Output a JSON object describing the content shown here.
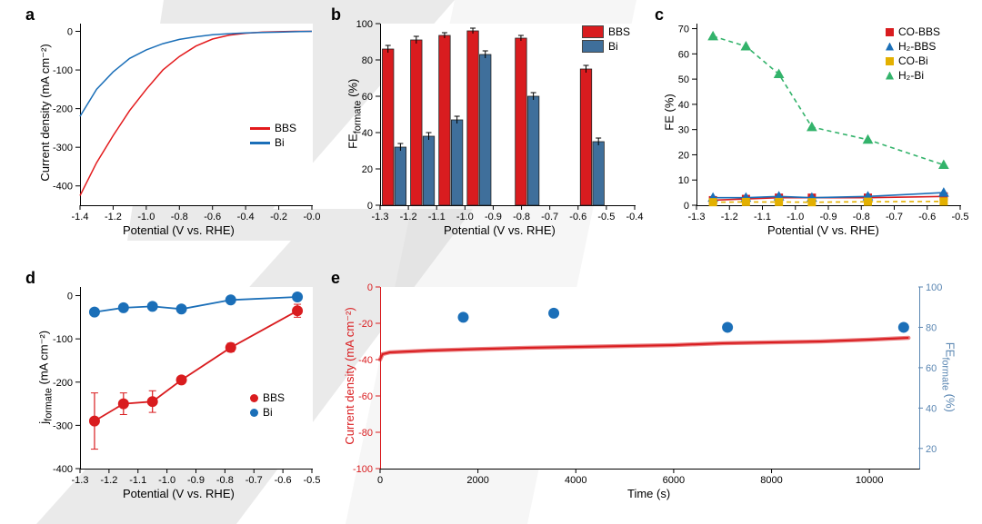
{
  "panels": {
    "a": {
      "label": "a",
      "label_fontsize": 18,
      "type": "line",
      "xlabel": "Potential (V vs. RHE)",
      "ylabel": "Current density (mA cm⁻²)",
      "label_fontsize_axis": 13,
      "tick_fontsize": 11,
      "xlim": [
        -1.4,
        0.0
      ],
      "xtick_step": 0.2,
      "ylim": [
        -450,
        20
      ],
      "yticks": [
        -400,
        -300,
        -200,
        -100,
        0
      ],
      "series": [
        {
          "name": "BBS",
          "color": "#e31a1c",
          "linewidth": 1.5,
          "dash": "solid",
          "x": [
            -1.4,
            -1.3,
            -1.2,
            -1.1,
            -1.0,
            -0.9,
            -0.8,
            -0.7,
            -0.6,
            -0.5,
            -0.4,
            -0.3,
            -0.2,
            -0.1,
            0.0
          ],
          "y": [
            -425,
            -340,
            -270,
            -205,
            -150,
            -100,
            -65,
            -38,
            -20,
            -10,
            -5,
            -2,
            -1,
            0,
            0
          ]
        },
        {
          "name": "Bi",
          "color": "#1b6fb8",
          "linewidth": 1.5,
          "dash": "solid",
          "x": [
            -1.4,
            -1.3,
            -1.2,
            -1.1,
            -1.0,
            -0.9,
            -0.8,
            -0.7,
            -0.6,
            -0.5,
            -0.4,
            -0.3,
            -0.2,
            -0.1,
            0.0
          ],
          "y": [
            -220,
            -150,
            -105,
            -70,
            -48,
            -32,
            -21,
            -14,
            -9,
            -6,
            -4,
            -3,
            -2,
            -1,
            0
          ]
        }
      ],
      "legend": {
        "position": "right",
        "items": [
          {
            "label": "BBS",
            "color": "#e31a1c"
          },
          {
            "label": "Bi",
            "color": "#1b6fb8"
          }
        ]
      }
    },
    "b": {
      "label": "b",
      "label_fontsize": 18,
      "type": "bar",
      "xlabel": "Potential (V vs. RHE)",
      "ylabel": "FEformate (%)",
      "ylabel_sub": "formate",
      "xlim": [
        -1.3,
        -0.4
      ],
      "xticks": [
        -1.3,
        -1.2,
        -1.1,
        -1.0,
        -0.9,
        -0.8,
        -0.7,
        -0.6,
        -0.5,
        -0.4
      ],
      "ylim": [
        0,
        100
      ],
      "ytick_step": 20,
      "bar_width": 0.04,
      "series": [
        {
          "name": "BBS",
          "color": "#d91c1f",
          "x": [
            -1.25,
            -1.15,
            -1.05,
            -0.95,
            -0.78,
            -0.55
          ],
          "y": [
            86,
            91,
            93.5,
            96,
            92,
            75
          ],
          "err": [
            2,
            2,
            1.5,
            1.5,
            1.5,
            2
          ]
        },
        {
          "name": "Bi",
          "color": "#3f6f9b",
          "x": [
            -1.25,
            -1.15,
            -1.05,
            -0.95,
            -0.78,
            -0.55
          ],
          "y": [
            32,
            38,
            47,
            83,
            60,
            35
          ],
          "err": [
            2,
            2,
            2,
            2,
            2,
            2
          ]
        }
      ],
      "legend": {
        "position": "top-right",
        "items": [
          {
            "label": "BBS",
            "color": "#d91c1f"
          },
          {
            "label": "Bi",
            "color": "#3f6f9b"
          }
        ]
      }
    },
    "c": {
      "label": "c",
      "label_fontsize": 18,
      "type": "line",
      "xlabel": "Potential (V vs. RHE)",
      "ylabel": "FE (%)",
      "xlim": [
        -1.3,
        -0.5
      ],
      "xticks": [
        -1.3,
        -1.2,
        -1.1,
        -1.0,
        -0.9,
        -0.8,
        -0.7,
        -0.6,
        -0.5
      ],
      "ylim": [
        0,
        72
      ],
      "yticks": [
        0,
        10,
        20,
        30,
        40,
        50,
        60,
        70
      ],
      "series": [
        {
          "name": "CO-BBS",
          "color": "#d91c1f",
          "marker": "square",
          "dash": "solid",
          "x": [
            -1.25,
            -1.15,
            -1.05,
            -0.95,
            -0.78,
            -0.55
          ],
          "y": [
            2,
            2.5,
            3,
            3,
            3,
            3.5
          ]
        },
        {
          "name": "H2-BBS",
          "color": "#1b6fb8",
          "marker": "triangle",
          "dash": "solid",
          "x": [
            -1.25,
            -1.15,
            -1.05,
            -0.95,
            -0.78,
            -0.55
          ],
          "y": [
            3,
            3,
            3.5,
            3,
            3.5,
            5
          ]
        },
        {
          "name": "CO-Bi",
          "color": "#e3b000",
          "marker": "square",
          "dash": "dashed",
          "x": [
            -1.25,
            -1.15,
            -1.05,
            -0.95,
            -0.78,
            -0.55
          ],
          "y": [
            1.2,
            1.3,
            1.3,
            1.2,
            1.4,
            1.5
          ]
        },
        {
          "name": "H2-Bi",
          "color": "#33b36b",
          "marker": "triangle",
          "dash": "dashed",
          "x": [
            -1.25,
            -1.15,
            -1.05,
            -0.95,
            -0.78,
            -0.55
          ],
          "y": [
            67,
            63,
            52,
            31,
            26,
            16
          ]
        }
      ],
      "legend": {
        "position": "top-right",
        "items": [
          {
            "label": "CO-BBS",
            "color": "#d91c1f",
            "marker": "square"
          },
          {
            "label": "H₂-BBS",
            "color": "#1b6fb8",
            "marker": "triangle"
          },
          {
            "label": "CO-Bi",
            "color": "#e3b000",
            "marker": "square"
          },
          {
            "label": "H₂-Bi",
            "color": "#33b36b",
            "marker": "triangle"
          }
        ]
      }
    },
    "d": {
      "label": "d",
      "label_fontsize": 18,
      "type": "line",
      "xlabel": "Potential (V vs. RHE)",
      "ylabel": "jformate (mA cm⁻²)",
      "ylabel_sub": "formate",
      "xlim": [
        -1.3,
        -0.5
      ],
      "xticks": [
        -1.3,
        -1.2,
        -1.1,
        -1.0,
        -0.9,
        -0.8,
        -0.7,
        -0.6,
        -0.5
      ],
      "ylim": [
        -400,
        20
      ],
      "yticks": [
        -400,
        -300,
        -200,
        -100,
        0
      ],
      "series": [
        {
          "name": "BBS",
          "color": "#d91c1f",
          "marker": "circle",
          "x": [
            -1.25,
            -1.15,
            -1.05,
            -0.95,
            -0.78,
            -0.55
          ],
          "y": [
            -290,
            -250,
            -245,
            -195,
            -120,
            -35
          ],
          "err": [
            65,
            25,
            25,
            8,
            10,
            15
          ]
        },
        {
          "name": "Bi",
          "color": "#1b6fb8",
          "marker": "circle",
          "x": [
            -1.25,
            -1.15,
            -1.05,
            -0.95,
            -0.78,
            -0.55
          ],
          "y": [
            -38,
            -28,
            -25,
            -31,
            -10,
            -3
          ],
          "err": [
            5,
            5,
            5,
            5,
            5,
            5
          ]
        }
      ],
      "legend": {
        "position": "right",
        "items": [
          {
            "label": "BBS",
            "color": "#d91c1f"
          },
          {
            "label": "Bi",
            "color": "#1b6fb8"
          }
        ]
      }
    },
    "e": {
      "label": "e",
      "label_fontsize": 18,
      "type": "dual-axis",
      "xlabel": "Time (s)",
      "xlim": [
        0,
        11000
      ],
      "xtick_step": 2000,
      "y1label": "Current density (mA cm⁻²)",
      "y1_color": "#d91c1f",
      "y1lim": [
        -100,
        0
      ],
      "y1tick_step": 20,
      "y2label": "FEformate (%)",
      "y2_color": "#5a86b2",
      "y2lim": [
        10,
        100
      ],
      "y2tick_step": 20,
      "series_line": {
        "name": "current",
        "color": "#d91c1f",
        "linewidth": 2.5,
        "x": [
          0,
          50,
          200,
          1000,
          2000,
          3000,
          4000,
          5000,
          6000,
          7000,
          8000,
          9000,
          10000,
          10800
        ],
        "y": [
          -40,
          -37,
          -36,
          -35,
          -34.2,
          -33.5,
          -33,
          -32.5,
          -32,
          -31,
          -30.5,
          -30,
          -29,
          -28
        ]
      },
      "series_points": {
        "name": "FE",
        "color": "#1b6fb8",
        "marker": "circle",
        "x": [
          1700,
          3550,
          7100,
          10700
        ],
        "y": [
          85,
          87,
          80,
          80
        ]
      }
    }
  },
  "background_color": "#ffffff",
  "watermark_color": "#cccccc",
  "text_color": "#000000"
}
